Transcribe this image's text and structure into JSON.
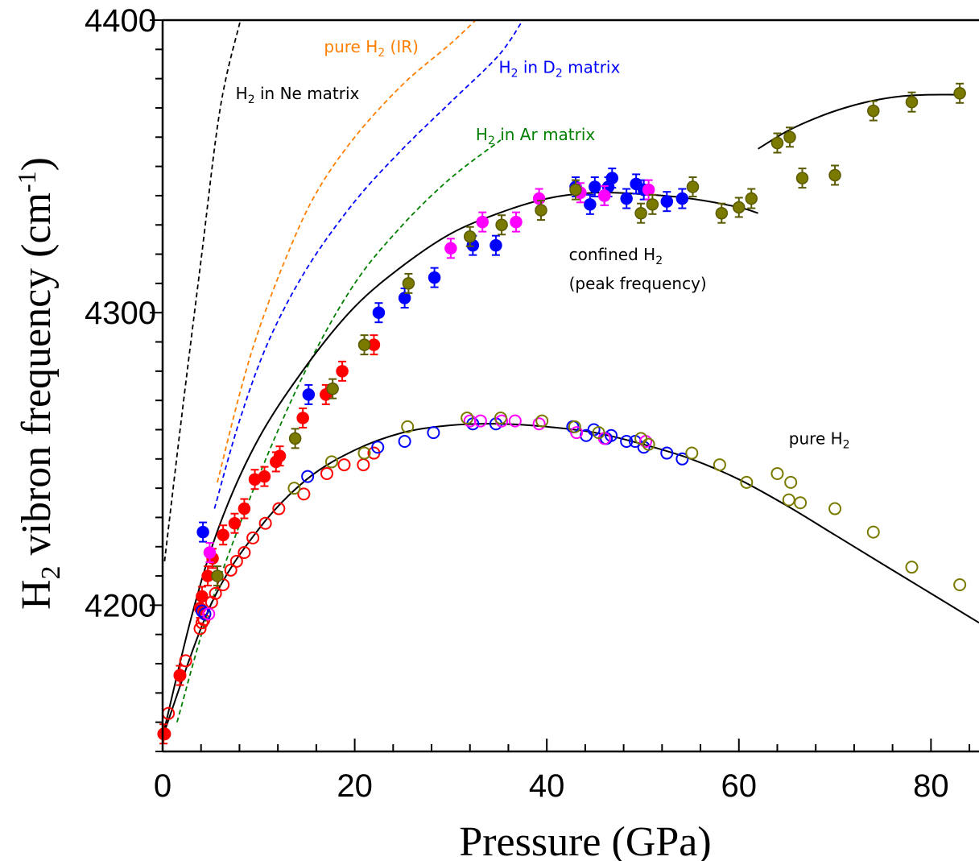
{
  "chart_data": {
    "type": "scatter",
    "xlabel": "Pressure (GPa)",
    "ylabel": {
      "base": "H",
      "sub": "2",
      "rest": " vibron frequency (cm",
      "sup": "-1",
      "end": ")"
    },
    "xlim": [
      0,
      85
    ],
    "ylim": [
      4150,
      4400
    ],
    "xticks": [
      0,
      20,
      40,
      60,
      80
    ],
    "yticks": [
      4200,
      4300,
      4400
    ],
    "colors": {
      "red": "#ff0000",
      "blue": "#0000ff",
      "magenta": "#ff00ff",
      "olive": "#7a7a00",
      "olive_edge": "#5a5a00",
      "black": "#000000",
      "orange": "#ff7f00",
      "dblue": "#0000ff",
      "green": "#008000"
    },
    "annotations": [
      {
        "id": "ne",
        "parts": [
          [
            "H",
            ""
          ],
          [
            "2",
            "sub"
          ],
          [
            " in Ne matrix",
            ""
          ]
        ],
        "x": 7.6,
        "y": 4373,
        "color": "black"
      },
      {
        "id": "ir",
        "parts": [
          [
            "pure H",
            ""
          ],
          [
            "2",
            "sub"
          ],
          [
            " (IR)",
            ""
          ]
        ],
        "x": 16.8,
        "y": 4389,
        "color": "orange"
      },
      {
        "id": "d2",
        "parts": [
          [
            "H",
            ""
          ],
          [
            "2",
            "sub"
          ],
          [
            " in D",
            ""
          ],
          [
            "2",
            "sub"
          ],
          [
            " matrix",
            ""
          ]
        ],
        "x": 35.0,
        "y": 4382,
        "color": "dblue"
      },
      {
        "id": "ar",
        "parts": [
          [
            "H",
            ""
          ],
          [
            "2",
            "sub"
          ],
          [
            " in Ar matrix",
            ""
          ]
        ],
        "x": 32.6,
        "y": 4359,
        "color": "green"
      },
      {
        "id": "conf1",
        "parts": [
          [
            "confined H",
            ""
          ],
          [
            "2",
            "sub"
          ]
        ],
        "x": 42.3,
        "y": 4318,
        "color": "black"
      },
      {
        "id": "conf2",
        "parts": [
          [
            "(peak frequency)",
            ""
          ]
        ],
        "x": 42.3,
        "y": 4308,
        "color": "black"
      },
      {
        "id": "pure",
        "parts": [
          [
            "pure H",
            ""
          ],
          [
            "2",
            "sub"
          ]
        ],
        "x": 65.2,
        "y": 4255,
        "color": "black"
      }
    ],
    "reference_lines": [
      {
        "name": "H2 in Ne matrix",
        "color": "black",
        "x": [
          0.2,
          2,
          4,
          6,
          8.1
        ],
        "y": [
          4215,
          4265,
          4318,
          4370,
          4400
        ]
      },
      {
        "name": "pure H2 (IR)",
        "color": "orange",
        "x": [
          5.7,
          8,
          10,
          13,
          16,
          20,
          25,
          30,
          32.6
        ],
        "y": [
          4242,
          4272,
          4294,
          4320,
          4341,
          4360,
          4378,
          4392,
          4400
        ]
      },
      {
        "name": "H2 in D2 matrix",
        "color": "dblue",
        "x": [
          5.4,
          8,
          11,
          15,
          20,
          25,
          30,
          35,
          37.5
        ],
        "y": [
          4233,
          4263,
          4290,
          4315,
          4338,
          4356,
          4372,
          4388,
          4400
        ]
      },
      {
        "name": "H2 in Ar matrix",
        "color": "green",
        "x": [
          1.5,
          5,
          10,
          15,
          20,
          25,
          30,
          35.2
        ],
        "y": [
          4160,
          4200,
          4244,
          4281,
          4310,
          4330,
          4346,
          4359
        ]
      }
    ],
    "fits": [
      {
        "name": "pure H2 fit",
        "color": "black",
        "x": [
          0,
          5,
          10,
          15,
          20,
          25,
          30,
          35,
          40,
          45,
          50,
          55,
          60,
          65,
          70,
          75,
          80,
          85
        ],
        "y": [
          4155,
          4200,
          4226,
          4243,
          4253,
          4259,
          4261.5,
          4262,
          4261,
          4259,
          4255,
          4250,
          4243,
          4234,
          4224,
          4214,
          4204,
          4194
        ]
      },
      {
        "name": "confined H2 fit",
        "color": "black",
        "x": [
          0,
          3,
          6,
          10,
          15,
          20,
          25,
          30,
          35,
          40,
          45,
          50,
          55,
          60,
          62
        ],
        "y": [
          4155,
          4196,
          4228,
          4257,
          4282,
          4302,
          4316,
          4327,
          4334,
          4339,
          4341,
          4340.5,
          4339,
          4336,
          4334
        ]
      },
      {
        "name": "high pressure fit",
        "color": "black",
        "x": [
          62,
          65,
          68,
          71,
          74,
          77,
          80,
          82.5
        ],
        "y": [
          4356,
          4362,
          4366.5,
          4370,
          4372.5,
          4374,
          4374.5,
          4374.5
        ]
      }
    ],
    "series": [
      {
        "name": "red open",
        "color": "red",
        "filled": false,
        "errorbars": false,
        "x": [
          0.2,
          0.6,
          1.8,
          2.4,
          3.9,
          4.1,
          4.3,
          5.1,
          5.5,
          6.3,
          7.1,
          7.7,
          8.5,
          9.4,
          10.7,
          12.1,
          14.7,
          17.1,
          18.9,
          20.9,
          22.0
        ],
        "y": [
          4156,
          4163,
          4176,
          4181,
          4192,
          4194,
          4195,
          4201,
          4204,
          4207,
          4212,
          4215,
          4218,
          4223,
          4228,
          4233,
          4238,
          4245,
          4248,
          4248,
          4252
        ]
      },
      {
        "name": "red filled",
        "color": "red",
        "filled": true,
        "errorbars": true,
        "x": [
          0.1,
          1.8,
          3.9,
          4.1,
          4.7,
          5.2,
          6.3,
          7.5,
          8.5,
          9.6,
          10.6,
          11.8,
          12.2,
          14.6,
          17.0,
          18.7,
          22.0
        ],
        "y": [
          4156,
          4176,
          4199,
          4203,
          4210,
          4216,
          4224,
          4228,
          4233,
          4243,
          4244,
          4249,
          4251,
          4264,
          4272,
          4280,
          4289
        ]
      },
      {
        "name": "blue open",
        "color": "blue",
        "filled": false,
        "errorbars": false,
        "x": [
          4.1,
          4.4,
          15.1,
          22.4,
          25.2,
          28.2,
          32.3,
          34.7,
          42.7,
          44.1,
          44.9,
          46.2,
          46.7,
          48.3,
          49.2,
          50.1,
          52.5,
          54.1
        ],
        "y": [
          4198,
          4197,
          4244,
          4254,
          4256,
          4259,
          4262,
          4262,
          4261,
          4258,
          4260,
          4257,
          4258,
          4256,
          4256,
          4254,
          4252,
          4250
        ]
      },
      {
        "name": "blue filled",
        "color": "blue",
        "filled": true,
        "errorbars": true,
        "x": [
          4.2,
          15.2,
          22.5,
          25.2,
          28.3,
          32.3,
          34.7,
          43.0,
          44.5,
          45.0,
          46.0,
          46.4,
          46.8,
          48.3,
          49.3,
          50.1,
          52.5,
          54.1
        ],
        "y": [
          4225,
          4272,
          4300,
          4305,
          4312,
          4323,
          4323,
          4343,
          4337,
          4343,
          4340,
          4343,
          4346,
          4339,
          4344,
          4342,
          4338,
          4339
        ]
      },
      {
        "name": "magenta open",
        "color": "magenta",
        "filled": false,
        "errorbars": false,
        "x": [
          4.8,
          32.0,
          33.1,
          35.3,
          36.7,
          39.2,
          43.1,
          46.0,
          50.3
        ],
        "y": [
          4197,
          4263,
          4263,
          4263,
          4263,
          4262,
          4259,
          4257,
          4256
        ]
      },
      {
        "name": "magenta filled",
        "color": "magenta",
        "filled": true,
        "errorbars": true,
        "x": [
          4.9,
          30.0,
          33.3,
          36.8,
          39.2,
          43.5,
          46.0,
          50.6
        ],
        "y": [
          4218,
          4322,
          4331,
          4331,
          4339,
          4341,
          4340,
          4342
        ]
      },
      {
        "name": "olive open",
        "color": "olive",
        "filled": false,
        "errorbars": false,
        "x": [
          13.7,
          17.6,
          21.0,
          25.5,
          31.7,
          35.2,
          39.5,
          42.9,
          45.4,
          49.8,
          50.6,
          55.1,
          58.0,
          60.8,
          64.0,
          65.2,
          65.4,
          66.4,
          70.0,
          74.0,
          78.0,
          83.0
        ],
        "y": [
          4240,
          4249,
          4252,
          4261,
          4264,
          4264,
          4263,
          4261,
          4259,
          4257,
          4255,
          4252,
          4248,
          4242,
          4245,
          4236,
          4242,
          4235,
          4233,
          4225,
          4213,
          4207
        ]
      },
      {
        "name": "olive filled",
        "color": "olive",
        "filled": true,
        "errorbars": true,
        "x": [
          5.7,
          13.8,
          17.7,
          21.0,
          25.6,
          32.0,
          35.3,
          39.4,
          43.0,
          49.8,
          51.0,
          55.2,
          58.2,
          60.0,
          61.3,
          64.0,
          65.3,
          66.6,
          70.0,
          74.0,
          78.0,
          83.0
        ],
        "y": [
          4210,
          4257,
          4274,
          4289,
          4310,
          4326,
          4330,
          4335,
          4342,
          4334,
          4337,
          4343,
          4334,
          4336,
          4339,
          4358,
          4360,
          4346,
          4347,
          4369,
          4372,
          4375
        ]
      }
    ]
  }
}
